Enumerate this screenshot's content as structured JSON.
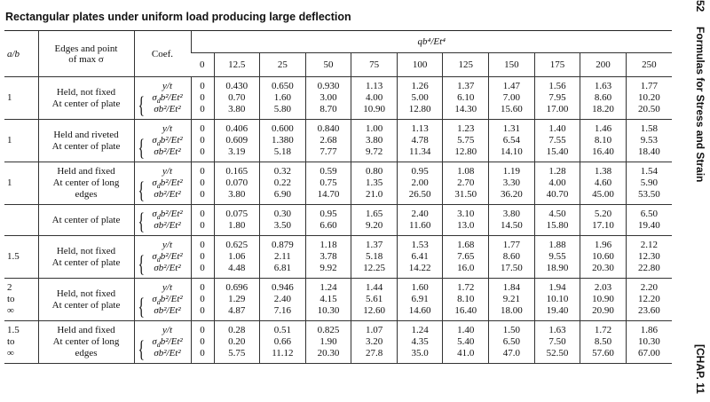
{
  "title": "Rectangular plates under uniform load producing large deflection",
  "side": {
    "page": "52",
    "running_title": "Formulas for Stress and Strain",
    "chapter": "[CHAP. 11"
  },
  "table": {
    "headers": {
      "ab": "a/b",
      "edges": [
        "Edges and point",
        "of max σ"
      ],
      "coef": "Coef.",
      "load": "qb⁴/Et⁴",
      "load_values": [
        "0",
        "12.5",
        "25",
        "50",
        "75",
        "100",
        "125",
        "150",
        "175",
        "200",
        "250"
      ]
    },
    "groups": [
      {
        "ab": [
          "1"
        ],
        "edges": [
          "Held, not fixed",
          "At center of plate"
        ],
        "rows": [
          {
            "coef": {
              "base": "y/t",
              "sub": "",
              "rest": ""
            },
            "values": [
              "0",
              "0.430",
              "0.650",
              "0.930",
              "1.13",
              "1.26",
              "1.37",
              "1.47",
              "1.56",
              "1.63",
              "1.77"
            ]
          },
          {
            "coef": {
              "base": "σ",
              "sub": "d",
              "rest": "b²/Et²"
            },
            "values": [
              "0",
              "0.70",
              "1.60",
              "3.00",
              "4.00",
              "5.00",
              "6.10",
              "7.00",
              "7.95",
              "8.60",
              "10.20"
            ]
          },
          {
            "coef": {
              "base": "σb²/Et²",
              "sub": "",
              "rest": ""
            },
            "values": [
              "0",
              "3.80",
              "5.80",
              "8.70",
              "10.90",
              "12.80",
              "14.30",
              "15.60",
              "17.00",
              "18.20",
              "20.50"
            ]
          }
        ]
      },
      {
        "ab": [
          "1"
        ],
        "edges": [
          "Held and riveted",
          "At center of plate"
        ],
        "rows": [
          {
            "coef": {
              "base": "y/t",
              "sub": "",
              "rest": ""
            },
            "values": [
              "0",
              "0.406",
              "0.600",
              "0.840",
              "1.00",
              "1.13",
              "1.23",
              "1.31",
              "1.40",
              "1.46",
              "1.58"
            ]
          },
          {
            "coef": {
              "base": "σ",
              "sub": "d",
              "rest": "b²/Et²"
            },
            "values": [
              "0",
              "0.609",
              "1.380",
              "2.68",
              "3.80",
              "4.78",
              "5.75",
              "6.54",
              "7.55",
              "8.10",
              "9.53"
            ]
          },
          {
            "coef": {
              "base": "σb²/Et²",
              "sub": "",
              "rest": ""
            },
            "values": [
              "0",
              "3.19",
              "5.18",
              "7.77",
              "9.72",
              "11.34",
              "12.80",
              "14.10",
              "15.40",
              "16.40",
              "18.40"
            ]
          }
        ]
      },
      {
        "ab": [
          "1"
        ],
        "edges": [
          "Held and fixed",
          "At center of long",
          "edges"
        ],
        "rows": [
          {
            "coef": {
              "base": "y/t",
              "sub": "",
              "rest": ""
            },
            "values": [
              "0",
              "0.165",
              "0.32",
              "0.59",
              "0.80",
              "0.95",
              "1.08",
              "1.19",
              "1.28",
              "1.38",
              "1.54"
            ]
          },
          {
            "coef": {
              "base": "σ",
              "sub": "d",
              "rest": "b²/Et²"
            },
            "values": [
              "0",
              "0.070",
              "0.22",
              "0.75",
              "1.35",
              "2.00",
              "2.70",
              "3.30",
              "4.00",
              "4.60",
              "5.90"
            ]
          },
          {
            "coef": {
              "base": "σb²/Et²",
              "sub": "",
              "rest": ""
            },
            "values": [
              "0",
              "3.80",
              "6.90",
              "14.70",
              "21.0",
              "26.50",
              "31.50",
              "36.20",
              "40.70",
              "45.00",
              "53.50"
            ]
          }
        ]
      },
      {
        "ab": [],
        "edges": [
          "At center of plate"
        ],
        "rows": [
          {
            "coef": {
              "base": "σ",
              "sub": "d",
              "rest": "b²/Et²"
            },
            "values": [
              "0",
              "0.075",
              "0.30",
              "0.95",
              "1.65",
              "2.40",
              "3.10",
              "3.80",
              "4.50",
              "5.20",
              "6.50"
            ]
          },
          {
            "coef": {
              "base": "σb²/Et²",
              "sub": "",
              "rest": ""
            },
            "values": [
              "0",
              "1.80",
              "3.50",
              "6.60",
              "9.20",
              "11.60",
              "13.0",
              "14.50",
              "15.80",
              "17.10",
              "19.40"
            ]
          }
        ]
      },
      {
        "ab": [
          "1.5"
        ],
        "edges": [
          "Held, not fixed",
          "At center of plate"
        ],
        "rows": [
          {
            "coef": {
              "base": "y/t",
              "sub": "",
              "rest": ""
            },
            "values": [
              "0",
              "0.625",
              "0.879",
              "1.18",
              "1.37",
              "1.53",
              "1.68",
              "1.77",
              "1.88",
              "1.96",
              "2.12"
            ]
          },
          {
            "coef": {
              "base": "σ",
              "sub": "d",
              "rest": "b²/Et²"
            },
            "values": [
              "0",
              "1.06",
              "2.11",
              "3.78",
              "5.18",
              "6.41",
              "7.65",
              "8.60",
              "9.55",
              "10.60",
              "12.30"
            ]
          },
          {
            "coef": {
              "base": "σb²/Et²",
              "sub": "",
              "rest": ""
            },
            "values": [
              "0",
              "4.48",
              "6.81",
              "9.92",
              "12.25",
              "14.22",
              "16.0",
              "17.50",
              "18.90",
              "20.30",
              "22.80"
            ]
          }
        ]
      },
      {
        "ab": [
          "2",
          "to",
          "∞"
        ],
        "edges": [
          "Held, not fixed",
          "At center of plate"
        ],
        "rows": [
          {
            "coef": {
              "base": "y/t",
              "sub": "",
              "rest": ""
            },
            "values": [
              "0",
              "0.696",
              "0.946",
              "1.24",
              "1.44",
              "1.60",
              "1.72",
              "1.84",
              "1.94",
              "2.03",
              "2.20"
            ]
          },
          {
            "coef": {
              "base": "σ",
              "sub": "d",
              "rest": "b²/Et²"
            },
            "values": [
              "0",
              "1.29",
              "2.40",
              "4.15",
              "5.61",
              "6.91",
              "8.10",
              "9.21",
              "10.10",
              "10.90",
              "12.20"
            ]
          },
          {
            "coef": {
              "base": "σb²/Et²",
              "sub": "",
              "rest": ""
            },
            "values": [
              "0",
              "4.87",
              "7.16",
              "10.30",
              "12.60",
              "14.60",
              "16.40",
              "18.00",
              "19.40",
              "20.90",
              "23.60"
            ]
          }
        ]
      },
      {
        "ab": [
          "1.5",
          "to",
          "∞"
        ],
        "edges": [
          "Held and fixed",
          "At center of long",
          "edges"
        ],
        "rows": [
          {
            "coef": {
              "base": "y/t",
              "sub": "",
              "rest": ""
            },
            "values": [
              "0",
              "0.28",
              "0.51",
              "0.825",
              "1.07",
              "1.24",
              "1.40",
              "1.50",
              "1.63",
              "1.72",
              "1.86"
            ]
          },
          {
            "coef": {
              "base": "σ",
              "sub": "d",
              "rest": "b²/Et²"
            },
            "values": [
              "0",
              "0.20",
              "0.66",
              "1.90",
              "3.20",
              "4.35",
              "5.40",
              "6.50",
              "7.50",
              "8.50",
              "10.30"
            ]
          },
          {
            "coef": {
              "base": "σb²/Et²",
              "sub": "",
              "rest": ""
            },
            "values": [
              "0",
              "5.75",
              "11.12",
              "20.30",
              "27.8",
              "35.0",
              "41.0",
              "47.0",
              "52.50",
              "57.60",
              "67.00"
            ]
          }
        ]
      }
    ]
  }
}
